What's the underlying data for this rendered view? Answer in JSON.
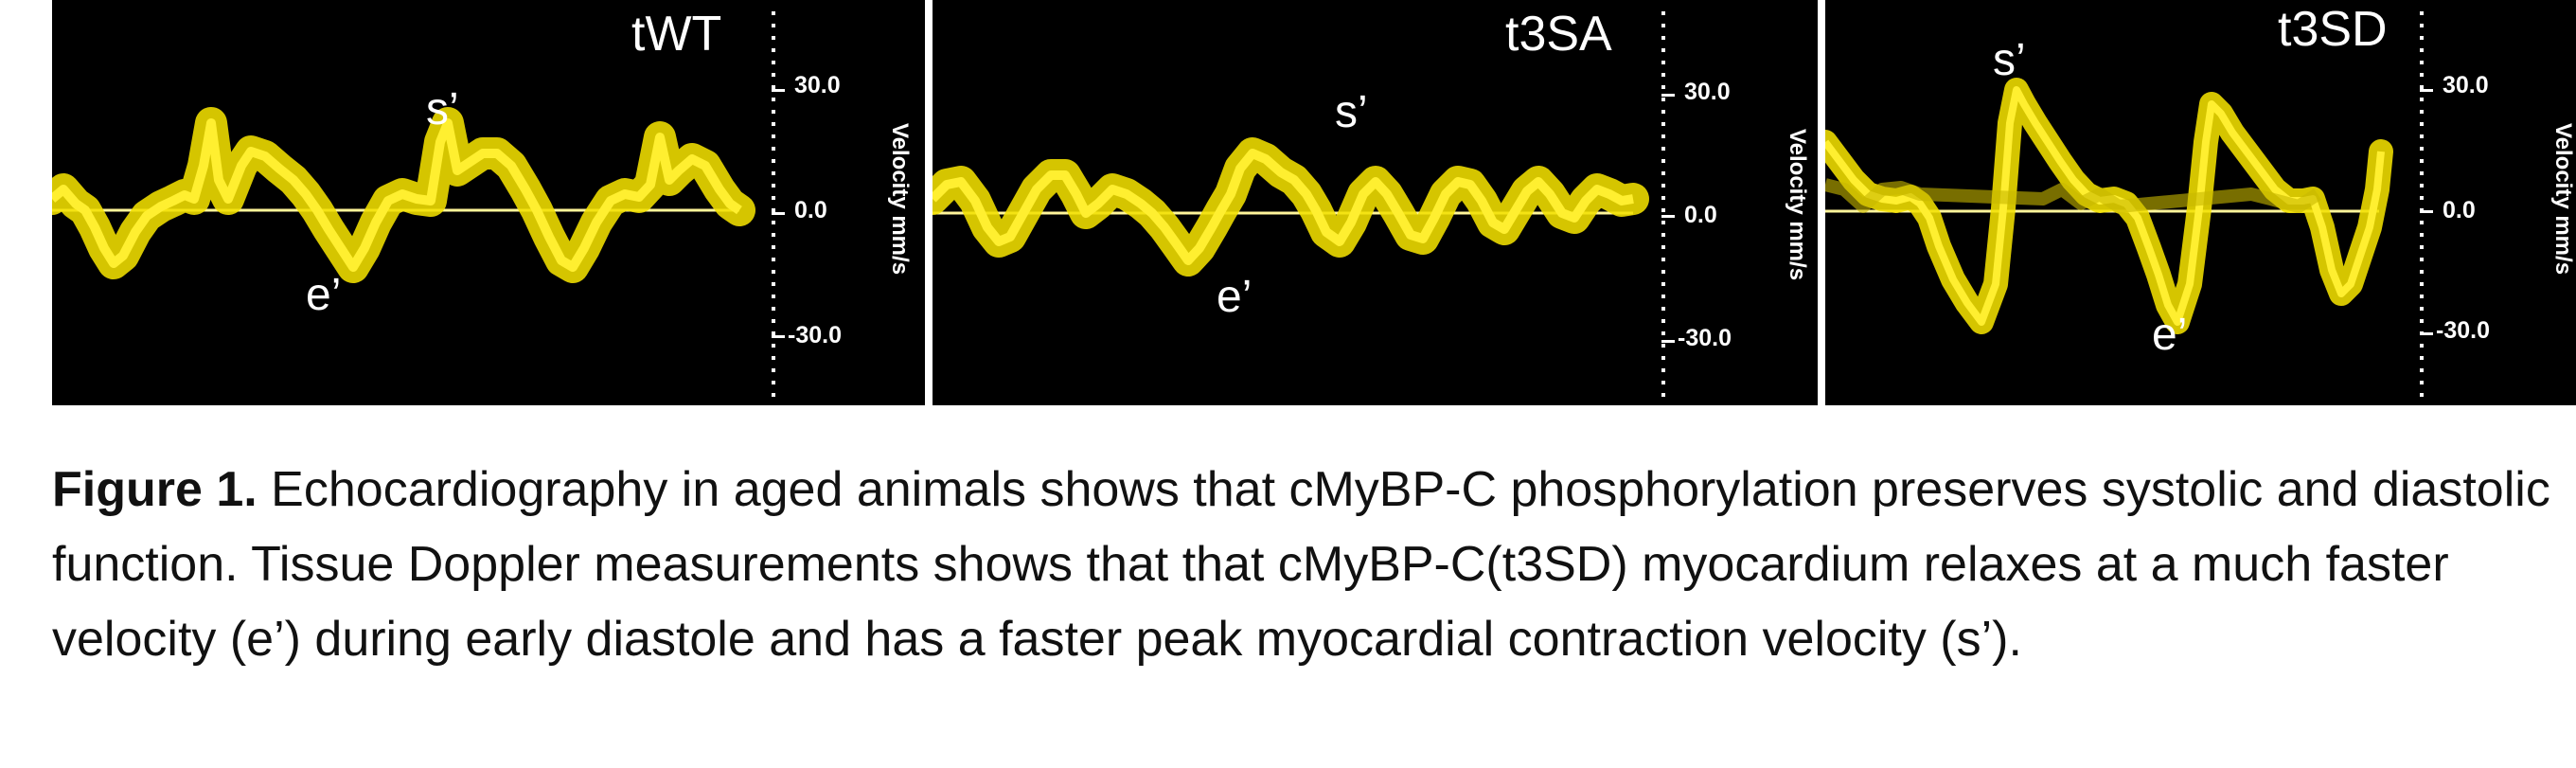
{
  "figure": {
    "panels": [
      {
        "title": "tWT",
        "annotations": {
          "s": "s’",
          "e": "e’"
        },
        "axis": {
          "ticks": [
            "30.0",
            "0.0",
            "-30.0"
          ],
          "label": "Velocity mm/s"
        }
      },
      {
        "title": "t3SA",
        "annotations": {
          "s": "s’",
          "e": "e’"
        },
        "axis": {
          "ticks": [
            "30.0",
            "0.0",
            "-30.0"
          ],
          "label": "Velocity mm/s"
        }
      },
      {
        "title": "t3SD",
        "annotations": {
          "s": "s’",
          "e": "e’"
        },
        "axis": {
          "ticks": [
            "30.0",
            "0.0",
            "-30.0"
          ],
          "label": "Velocity mm/s"
        }
      }
    ],
    "colors": {
      "trace": "#f2e000",
      "background": "#000000",
      "baseline": "#fff59a"
    }
  },
  "caption": {
    "label": "Figure 1.",
    "text": "Echocardiography in aged animals shows that cMyBP-C phosphorylation preserves systolic and diastolic function. Tissue Doppler measurements shows that that cMyBP-C(t3SD) myocardium relaxes at a much faster velocity (e’) during early diastole and has a faster peak myocardial contraction velocity (s’)."
  }
}
